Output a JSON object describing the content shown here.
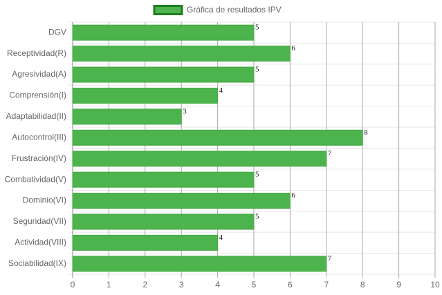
{
  "chart_data": {
    "type": "bar",
    "orientation": "horizontal",
    "categories": [
      "DGV",
      "Receptividad(R)",
      "Agresividad(A)",
      "Comprensión(I)",
      "Adaptabilidad(II)",
      "Autocontrol(III)",
      "Frustración(IV)",
      "Combatividad(V)",
      "Dominio(VI)",
      "Seguridad(VII)",
      "Actividad(VIII)",
      "Sociabilidad(IX)"
    ],
    "series": [
      {
        "name": "Gráfica de resultados IPV",
        "color": "#4db34d",
        "values": [
          5,
          6,
          5,
          4,
          3,
          8,
          7,
          5,
          6,
          5,
          4,
          7
        ]
      }
    ],
    "xlim": [
      0,
      10
    ],
    "xticks": [
      0,
      1,
      2,
      3,
      4,
      5,
      6,
      7,
      8,
      9,
      10
    ],
    "grid": true,
    "legend": "top"
  }
}
